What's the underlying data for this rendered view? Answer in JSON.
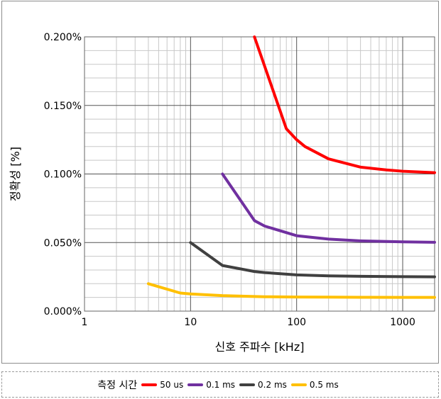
{
  "chart_data": {
    "type": "line",
    "title": "",
    "xlabel": "신호 주파수 [kHz]",
    "ylabel": "정확성 [%]",
    "xscale": "log",
    "xlim": [
      1,
      2000
    ],
    "ylim": [
      0,
      0.2
    ],
    "x_ticks": [
      "1",
      "10",
      "100",
      "1000"
    ],
    "y_ticks": [
      "0.000%",
      "0.050%",
      "0.100%",
      "0.150%",
      "0.200%"
    ],
    "grid": true,
    "legend_title": "측정 시간",
    "legend_position": "bottom",
    "series": [
      {
        "name": "50 us",
        "color": "#ff0000",
        "x": [
          40,
          80,
          100,
          120,
          200,
          400,
          700,
          1000,
          2000
        ],
        "y": [
          0.2,
          0.133,
          0.125,
          0.12,
          0.111,
          0.105,
          0.103,
          0.102,
          0.101
        ]
      },
      {
        "name": "0.1 ms",
        "color": "#7030a0",
        "x": [
          20,
          40,
          50,
          100,
          200,
          400,
          1000,
          2000
        ],
        "y": [
          0.1,
          0.066,
          0.062,
          0.055,
          0.0525,
          0.0512,
          0.0505,
          0.0502
        ]
      },
      {
        "name": "0.2 ms",
        "color": "#404040",
        "x": [
          10,
          20,
          40,
          50,
          100,
          200,
          500,
          1000,
          2000
        ],
        "y": [
          0.05,
          0.0333,
          0.0289,
          0.0281,
          0.0264,
          0.0257,
          0.0253,
          0.0251,
          0.025
        ]
      },
      {
        "name": "0.5 ms",
        "color": "#ffc000",
        "x": [
          4,
          8,
          10,
          20,
          50,
          100,
          200,
          500,
          1000,
          2000
        ],
        "y": [
          0.02,
          0.0132,
          0.0125,
          0.0113,
          0.0105,
          0.0103,
          0.0102,
          0.0101,
          0.01005,
          0.01
        ]
      }
    ]
  }
}
